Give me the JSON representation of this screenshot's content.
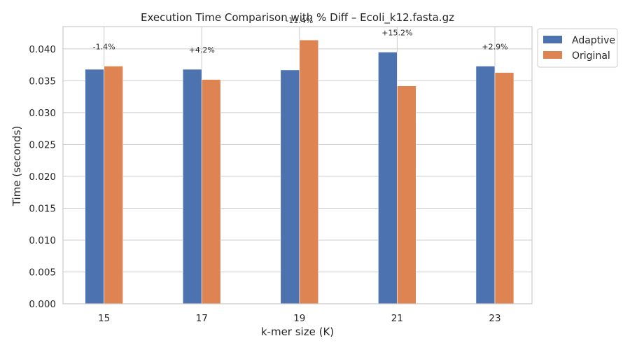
{
  "chart_data": {
    "type": "bar",
    "title": "Execution Time Comparison with % Diff – Ecoli_k12.fasta.gz",
    "xlabel": "k-mer size (K)",
    "ylabel": "Time (seconds)",
    "categories": [
      "15",
      "17",
      "19",
      "21",
      "23"
    ],
    "series": [
      {
        "name": "Adaptive",
        "color": "#4c72b0",
        "values": [
          0.0368,
          0.0368,
          0.0367,
          0.0395,
          0.0373
        ]
      },
      {
        "name": "Original",
        "color": "#dd8452",
        "values": [
          0.0373,
          0.0352,
          0.0414,
          0.0342,
          0.0363
        ]
      }
    ],
    "annotations": [
      "-1.4%",
      "+4.2%",
      "-11.4%",
      "+15.2%",
      "+2.9%"
    ],
    "ylim": [
      0,
      0.0435
    ],
    "yticks": [
      "0.000",
      "0.005",
      "0.010",
      "0.015",
      "0.020",
      "0.025",
      "0.030",
      "0.035",
      "0.040"
    ],
    "grid": true,
    "legend_position": "upper-right-outside"
  }
}
